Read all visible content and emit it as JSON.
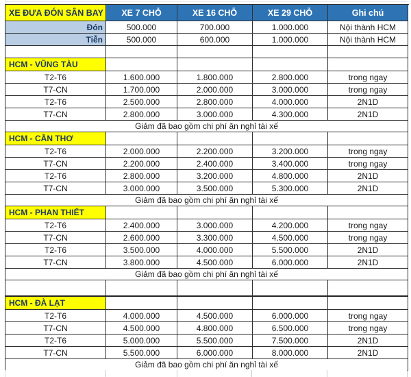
{
  "colors": {
    "column_header_bg": "#2E74B5",
    "column_header_text": "#FFFFFF",
    "highlight_bg": "#FFFF00",
    "highlight_text": "#1F3864",
    "label_bg": "#B9CDE5",
    "error_flag_green": "#217346",
    "selection_green": "#2E9E68",
    "grid_border": "#2F2F2F"
  },
  "table": {
    "title": "XE ĐƯA ĐÓN SÂN BAY",
    "columns": [
      "XE 7 CHỖ",
      "XE 16 CHỖ",
      "XE 29 CHỖ",
      "Ghi chú"
    ],
    "airport_rows": [
      {
        "label": "Đón",
        "values": [
          "500.000",
          "700.000",
          "1.000.000"
        ],
        "note": "Nội thành HCM",
        "error_flags": [
          true,
          true,
          false
        ]
      },
      {
        "label": "Tiễn",
        "values": [
          "500.000",
          "600.000",
          "1.000.000"
        ],
        "note": "Nội thành HCM",
        "error_flags": [
          true,
          true,
          false
        ]
      }
    ],
    "sections": [
      {
        "title": "HCM - VŨNG TÀU",
        "rows": [
          {
            "label": "T2-T6",
            "values": [
              "1.600.000",
              "1.800.000",
              "2.800.000"
            ],
            "note": "trong ngay"
          },
          {
            "label": "T7-CN",
            "values": [
              "1.700.000",
              "2.000.000",
              "3.000.000"
            ],
            "note": "trong ngay"
          },
          {
            "label": "T2-T6",
            "values": [
              "2.500.000",
              "2.800.000",
              "4.000.000"
            ],
            "note": "2N1D"
          },
          {
            "label": "T7-CN",
            "values": [
              "2.800.000",
              "3.000.000",
              "4.300.000"
            ],
            "note": "2N1D"
          }
        ],
        "footer": "Giảm đã bao gồm chi phí ăn nghỉ tài xế"
      },
      {
        "title": "HCM - CẦN THƠ",
        "rows": [
          {
            "label": "T2-T6",
            "values": [
              "2.000.000",
              "2.200.000",
              "3.200.000"
            ],
            "note": "trong ngay"
          },
          {
            "label": "T7-CN",
            "values": [
              "2.200.000",
              "2.400.000",
              "3.400.000"
            ],
            "note": "trong ngay"
          },
          {
            "label": "T2-T6",
            "values": [
              "2.800.000",
              "3.200.000",
              "4.800.000"
            ],
            "note": "2N1D"
          },
          {
            "label": "T7-CN",
            "values": [
              "3.000.000",
              "3.500.000",
              "5.300.000"
            ],
            "note": "2N1D"
          }
        ],
        "footer": "Giảm đã bao gồm chi phí ăn nghỉ tài xế"
      },
      {
        "title": "HCM - PHAN THIẾT",
        "rows": [
          {
            "label": "T2-T6",
            "values": [
              "2.400.000",
              "3.000.000",
              "4.200.000"
            ],
            "note": "trong ngay"
          },
          {
            "label": "T7-CN",
            "values": [
              "2.600.000",
              "3.300.000",
              "4.500.000"
            ],
            "note": "trong ngay"
          },
          {
            "label": "T2-T6",
            "values": [
              "3.500.000",
              "4.000.000",
              "5.500.000"
            ],
            "note": "2N1D"
          },
          {
            "label": "T7-CN",
            "values": [
              "3.800.000",
              "4.500.000",
              "6.000.000"
            ],
            "note": "2N1D"
          }
        ],
        "footer": "Giảm đã bao gồm chi phí ăn nghỉ tài xế"
      },
      {
        "title": "HCM - ĐÀ LẠT",
        "rows": [
          {
            "label": "T2-T6",
            "values": [
              "4.000.000",
              "4.500.000",
              "6.000.000"
            ],
            "note": "trong ngay"
          },
          {
            "label": "T7-CN",
            "values": [
              "4.500.000",
              "4.800.000",
              "6.500.000"
            ],
            "note": "trong ngay"
          },
          {
            "label": "T2-T6",
            "values": [
              "5.000.000",
              "5.500.000",
              "7.500.000"
            ],
            "note": "2N1D"
          },
          {
            "label": "T7-CN",
            "values": [
              "5.500.000",
              "6.000.000",
              "8.000.000"
            ],
            "note": "2N1D"
          }
        ],
        "footer": "Giảm đã bao gồm chi phí ăn nghỉ tài xế"
      }
    ],
    "selected_cell": {
      "section_index": 1,
      "row_index": 0
    }
  }
}
